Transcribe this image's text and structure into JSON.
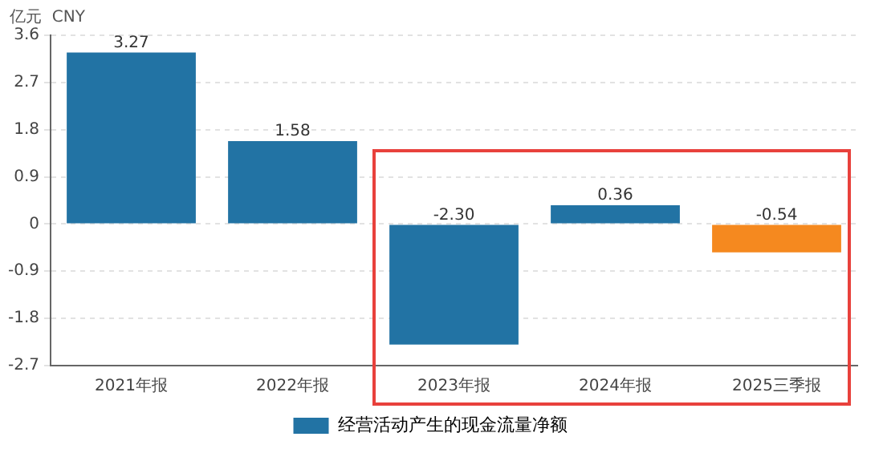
{
  "chart_data": {
    "type": "bar",
    "ylabel": "亿元  CNY",
    "categories": [
      "2021年报",
      "2022年报",
      "2023年报",
      "2024年报",
      "2025三季报"
    ],
    "series": [
      {
        "name": "经营活动产生的现金流量净额",
        "colors": [
          "#2273a4",
          "#2273a4",
          "#2273a4",
          "#2273a4",
          "#f5891f"
        ],
        "values": [
          3.27,
          1.58,
          -2.3,
          0.36,
          -0.54
        ],
        "value_labels": [
          "3.27",
          "1.58",
          "-2.30",
          "0.36",
          "-0.54"
        ]
      }
    ],
    "ylim": [
      -2.7,
      3.6
    ],
    "yticks": [
      -2.7,
      -1.8,
      -0.9,
      0,
      0.9,
      1.8,
      2.7,
      3.6
    ],
    "grid": "y",
    "legend": "bottom"
  }
}
